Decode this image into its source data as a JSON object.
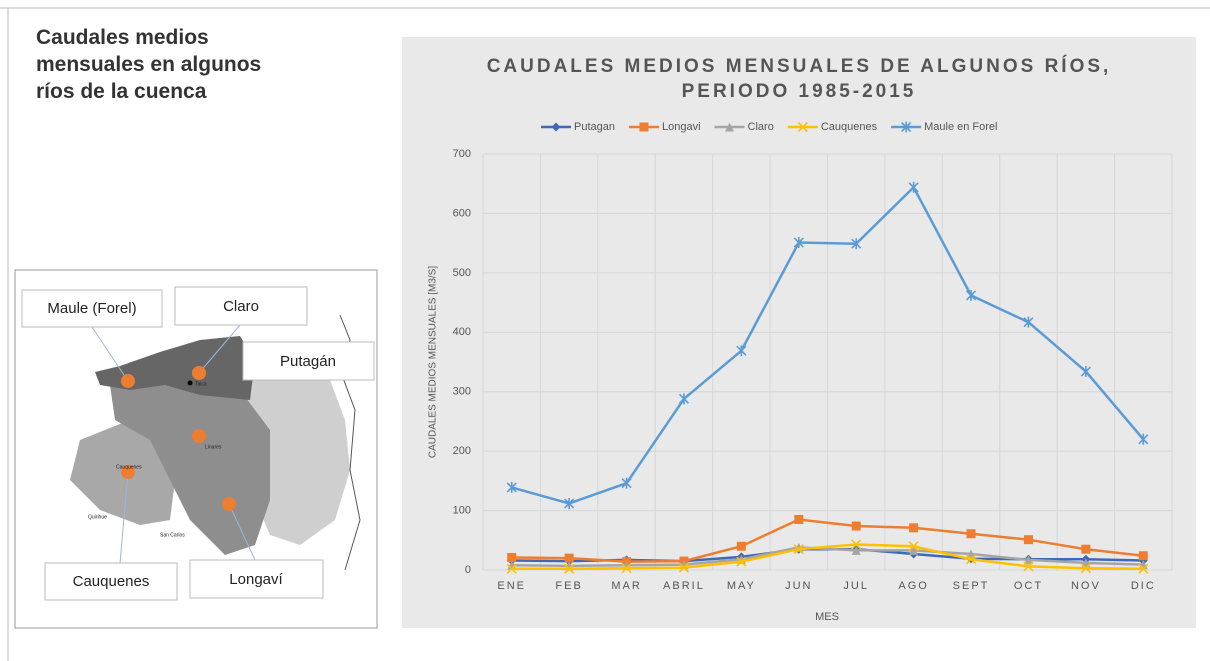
{
  "heading": "Caudales medios mensuales en algunos ríos de la cuenca",
  "map": {
    "labels": [
      "Maule (Forel)",
      "Claro",
      "Putagán",
      "Cauquenes",
      "Longaví"
    ],
    "places": [
      "Talca",
      "Linares",
      "Cauquenes",
      "Quirihue",
      "San Carlos"
    ]
  },
  "chart_data": {
    "type": "line",
    "title": [
      "CAUDALES MEDIOS MENSUALES DE ALGUNOS RÍOS,",
      "PERIODO 1985-2015"
    ],
    "xlabel": "MES",
    "ylabel": "CAUDALES MEDIOS MENSUALES [M3/S]",
    "categories": [
      "ENE",
      "FEB",
      "MAR",
      "ABRIL",
      "MAY",
      "JUN",
      "JUL",
      "AGO",
      "SEPT",
      "OCT",
      "NOV",
      "DIC"
    ],
    "ylim": [
      0,
      700
    ],
    "yticks": [
      0,
      100,
      200,
      300,
      400,
      500,
      600,
      700
    ],
    "grid": true,
    "legend": "top",
    "series": [
      {
        "name": "Putagan",
        "color": "#4068b8",
        "marker": "diamond",
        "values": [
          16,
          15,
          17,
          15,
          22,
          35,
          35,
          27,
          19,
          18,
          18,
          16
        ]
      },
      {
        "name": "Longavi",
        "color": "#ed7d31",
        "marker": "square",
        "values": [
          21,
          20,
          14,
          15,
          40,
          85,
          74,
          71,
          61,
          51,
          35,
          24
        ]
      },
      {
        "name": "Claro",
        "color": "#a5a5a5",
        "marker": "triangle",
        "values": [
          8,
          7,
          8,
          9,
          18,
          38,
          33,
          33,
          27,
          17,
          12,
          9
        ]
      },
      {
        "name": "Cauquenes",
        "color": "#ffc000",
        "marker": "x",
        "values": [
          2,
          2,
          3,
          4,
          14,
          35,
          43,
          40,
          18,
          6,
          3,
          2
        ]
      },
      {
        "name": "Maule en Forel",
        "color": "#5b9bd5",
        "marker": "star",
        "values": [
          139,
          112,
          146,
          288,
          369,
          551,
          549,
          644,
          462,
          417,
          334,
          220
        ]
      }
    ]
  }
}
